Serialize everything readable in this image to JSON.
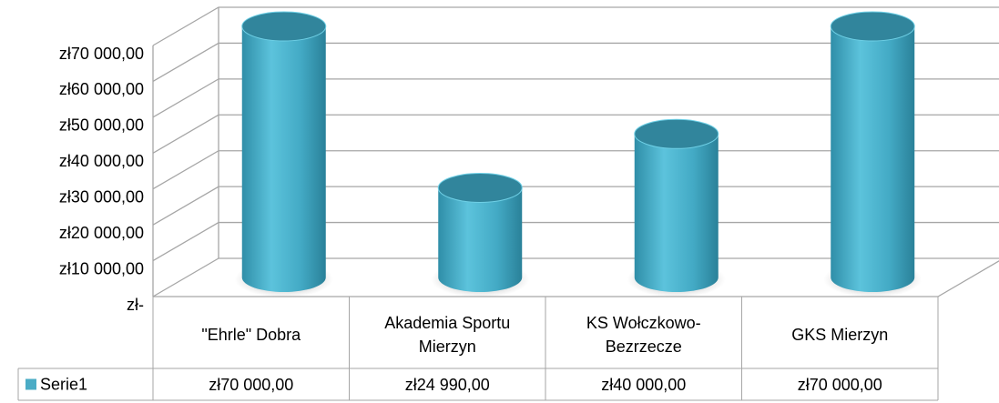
{
  "chart_data": {
    "type": "bar",
    "categories": [
      "\"Ehrle\" Dobra",
      "Akademia Sportu Mierzyn",
      "KS Wołczkowo-Bezrzecze",
      "GKS Mierzyn"
    ],
    "series": [
      {
        "name": "Serie1",
        "color": "#4bacc6",
        "values": [
          70000,
          24990,
          40000,
          70000
        ],
        "value_labels": [
          "zł70 000,00",
          "zł24 990,00",
          "zł40 000,00",
          "zł70 000,00"
        ]
      }
    ],
    "ylim": [
      0,
      70000
    ],
    "yticks": [
      {
        "value": 0,
        "label": "zł-"
      },
      {
        "value": 10000,
        "label": "zł10 000,00"
      },
      {
        "value": 20000,
        "label": "zł20 000,00"
      },
      {
        "value": 30000,
        "label": "zł30 000,00"
      },
      {
        "value": 40000,
        "label": "zł40 000,00"
      },
      {
        "value": 50000,
        "label": "zł50 000,00"
      },
      {
        "value": 60000,
        "label": "zł60 000,00"
      },
      {
        "value": 70000,
        "label": "zł70 000,00"
      }
    ],
    "grid": true
  }
}
